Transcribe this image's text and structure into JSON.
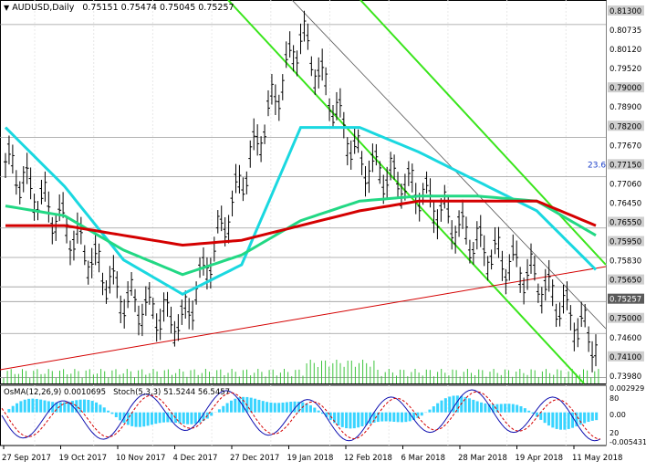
{
  "header": {
    "symbol_timeframe": "AUDUSD,Daily",
    "ohlc": "0.75151 0.75474 0.75045 0.75257"
  },
  "indicator_panel": {
    "label": "OsMA(12,26,9) 0.0010695   Stoch(5,3,3) 51.5244 56.5457"
  },
  "colors": {
    "background": "#ffffff",
    "grid": "#e8e8e8",
    "price_bars": "#000000",
    "ma_fast": "#1ad8e0",
    "ma_mid": "#22d884",
    "ma_slow": "#d40000",
    "channel": "#3ae51c",
    "trendline": "#d40000",
    "stoch_main": "#1010b0",
    "stoch_signal": "#d40000",
    "osma": "#38d4ff",
    "volume": "#3cc43c",
    "label_box": "#cfcfcf",
    "current_price_box": "#5a5a5a"
  },
  "price_axis_labels": [
    "0.81300",
    "0.80735",
    "0.80120",
    "0.79520",
    "0.79000",
    "0.78900",
    "0.78200",
    "0.77670",
    "0.77150",
    "0.77060",
    "0.76450",
    "0.76550",
    "0.75950",
    "0.75830",
    "0.75650",
    "0.75257",
    "0.75000",
    "0.74600",
    "0.74100",
    "0.73980"
  ],
  "fib_label": "23.6",
  "osma_axis_labels": [
    "0.002929",
    "80",
    "0.00",
    "20",
    "-0.005431"
  ],
  "date_labels": [
    "27 Sep 2017",
    "19 Oct 2017",
    "10 Nov 2017",
    "4 Dec 2017",
    "27 Dec 2017",
    "19 Jan 2018",
    "12 Feb 2018",
    "6 Mar 2018",
    "28 Mar 2018",
    "19 Apr 2018",
    "11 May 2018"
  ],
  "chart_data": {
    "type": "candlestick",
    "symbol": "AUDUSD",
    "timeframe": "Daily",
    "last_bar": {
      "open": 0.75151,
      "high": 0.75474,
      "low": 0.75045,
      "close": 0.75257
    },
    "x": [
      "27 Sep 2017",
      "19 Oct 2017",
      "10 Nov 2017",
      "4 Dec 2017",
      "27 Dec 2017",
      "19 Jan 2018",
      "12 Feb 2018",
      "6 Mar 2018",
      "28 Mar 2018",
      "19 Apr 2018",
      "11 May 2018"
    ],
    "series": [
      {
        "name": "price",
        "values": [
          0.785,
          0.772,
          0.757,
          0.752,
          0.781,
          0.811,
          0.785,
          0.779,
          0.768,
          0.761,
          0.748
        ]
      },
      {
        "values": [
          0.792,
          0.78,
          0.765,
          0.758,
          0.764,
          0.792,
          0.792,
          0.787,
          0.781,
          0.775,
          0.763
        ]
      },
      {
        "values": [
          0.776,
          0.774,
          0.767,
          0.762,
          0.766,
          0.773,
          0.777,
          0.778,
          0.778,
          0.777,
          0.77
        ]
      },
      {
        "values": [
          0.772,
          0.772,
          0.77,
          0.768,
          0.769,
          0.772,
          0.775,
          0.777,
          0.777,
          0.777,
          0.772
        ]
      }
    ],
    "horizontal_levels": [
      0.813,
      0.79,
      0.782,
      0.7715,
      0.7655,
      0.7595,
      0.7565,
      0.75,
      0.741
    ],
    "current_price": 0.75257,
    "ylim": [
      0.7398,
      0.818
    ],
    "grid": true
  }
}
